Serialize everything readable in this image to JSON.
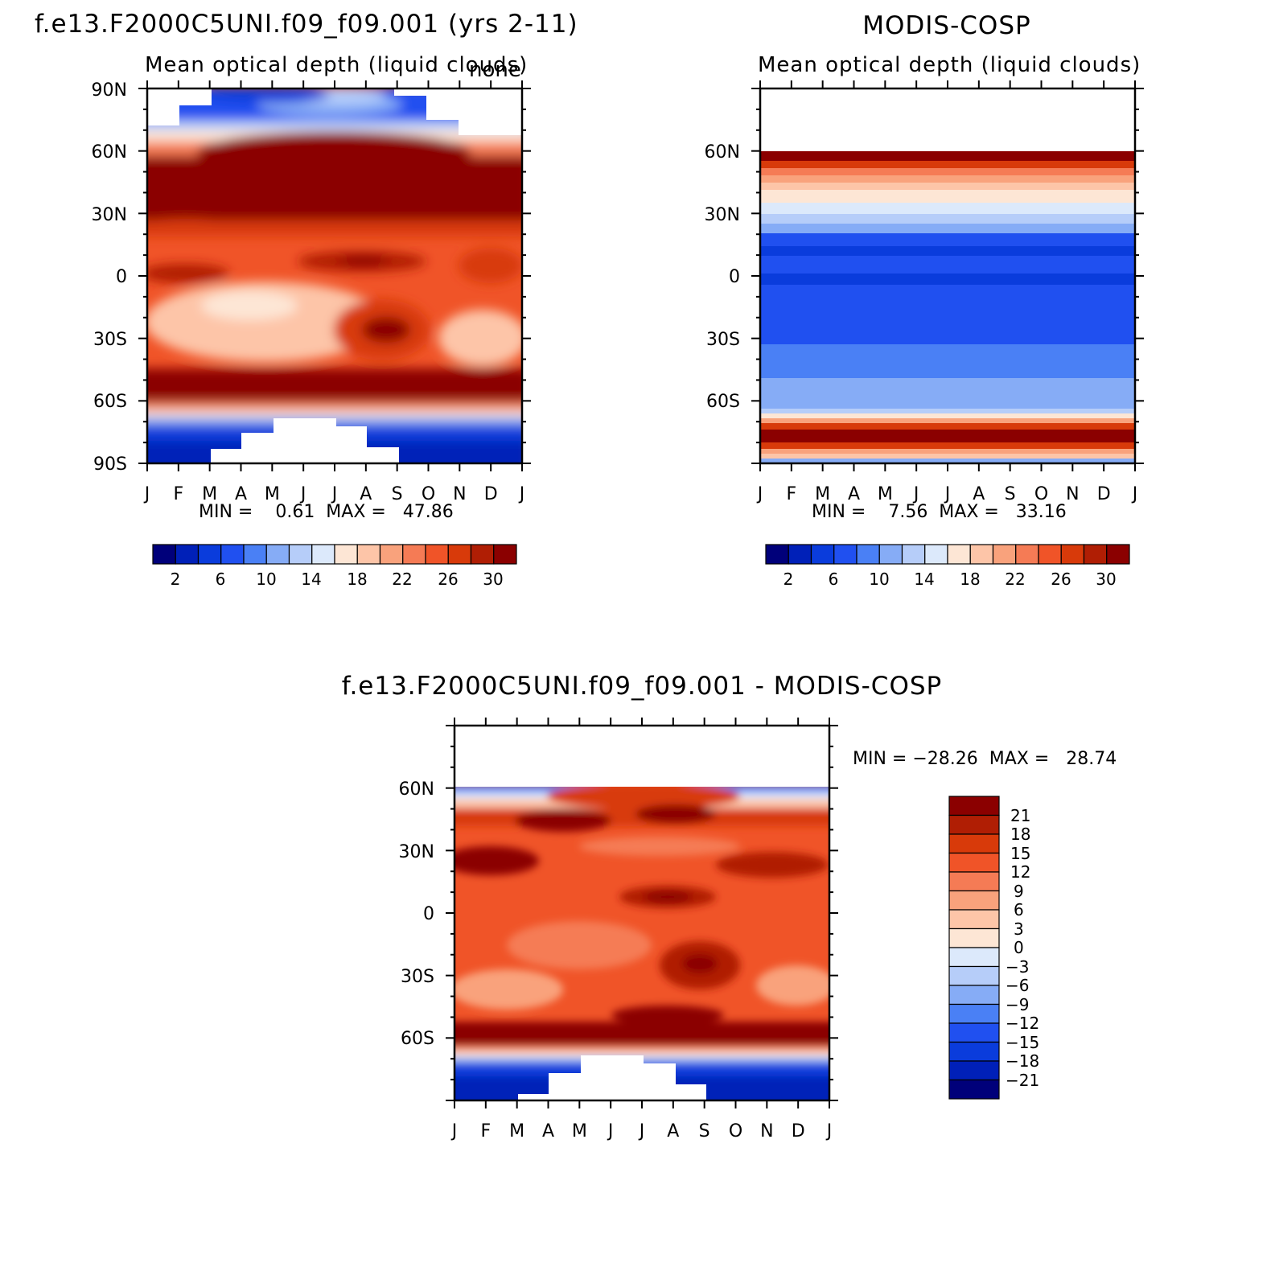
{
  "chart_data": [
    {
      "type": "heatmap",
      "panel": "model",
      "title": "f.e13.F2000C5UNI.f09_f09.001 (yrs 2-11)",
      "subtitle": "Mean optical depth (liquid clouds)",
      "units_label": "none",
      "x_tick_labels": [
        "J",
        "F",
        "M",
        "A",
        "M",
        "J",
        "J",
        "A",
        "S",
        "O",
        "N",
        "D",
        "J"
      ],
      "y_tick_labels": [
        "90N",
        "60N",
        "30N",
        "0",
        "30S",
        "60S",
        "90S"
      ],
      "ylim": [
        -90,
        90
      ],
      "stats_text": "MIN =    0.61  MAX =   47.86",
      "min": 0.61,
      "max": 47.86,
      "colorbar_labels": [
        "2",
        "6",
        "10",
        "14",
        "18",
        "22",
        "26",
        "30"
      ],
      "missing": "white regions near the poles (polar night)"
    },
    {
      "type": "heatmap",
      "panel": "observations",
      "title": "MODIS-COSP",
      "subtitle": "Mean optical depth (liquid clouds)",
      "x_tick_labels": [
        "J",
        "F",
        "M",
        "A",
        "M",
        "J",
        "J",
        "A",
        "S",
        "O",
        "N",
        "D",
        "J"
      ],
      "y_tick_labels": [
        "60N",
        "30N",
        "0",
        "30S",
        "60S"
      ],
      "ylim": [
        -90,
        90
      ],
      "stats_text": "MIN =    7.56  MAX =   33.16",
      "min": 7.56,
      "max": 33.16,
      "colorbar_labels": [
        "2",
        "6",
        "10",
        "14",
        "18",
        "22",
        "26",
        "30"
      ],
      "missing": "no data poleward of 60N"
    },
    {
      "type": "heatmap",
      "panel": "difference",
      "title": "f.e13.F2000C5UNI.f09_f09.001 - MODIS-COSP",
      "x_tick_labels": [
        "J",
        "F",
        "M",
        "A",
        "M",
        "J",
        "J",
        "A",
        "S",
        "O",
        "N",
        "D",
        "J"
      ],
      "y_tick_labels": [
        "60N",
        "30N",
        "0",
        "30S",
        "60S"
      ],
      "ylim": [
        -90,
        90
      ],
      "stats_text": "MIN = −28.26  MAX =   28.74",
      "min": -28.26,
      "max": 28.74,
      "colorbar_labels": [
        "21",
        "18",
        "15",
        "12",
        "9",
        "6",
        "3",
        "0",
        "−3",
        "−6",
        "−9",
        "−12",
        "−15",
        "−18",
        "−21"
      ]
    }
  ],
  "palettes": {
    "seq": [
      "#00007a",
      "#0020b8",
      "#0a3cdc",
      "#2050f0",
      "#4a80f5",
      "#86acf6",
      "#b6cdf9",
      "#dce9fb",
      "#fde6d5",
      "#fdc5a8",
      "#f9a27c",
      "#f57b55",
      "#f05428",
      "#d83a0a",
      "#b01e04",
      "#8b0000"
    ],
    "diff": [
      "#8b0000",
      "#b01e04",
      "#d83a0a",
      "#f05428",
      "#f57b55",
      "#f9a27c",
      "#fdc5a8",
      "#fde6d5",
      "#dce9fb",
      "#b6cdf9",
      "#86acf6",
      "#4a80f5",
      "#2050f0",
      "#0a3cdc",
      "#0020b8",
      "#00007a"
    ]
  }
}
